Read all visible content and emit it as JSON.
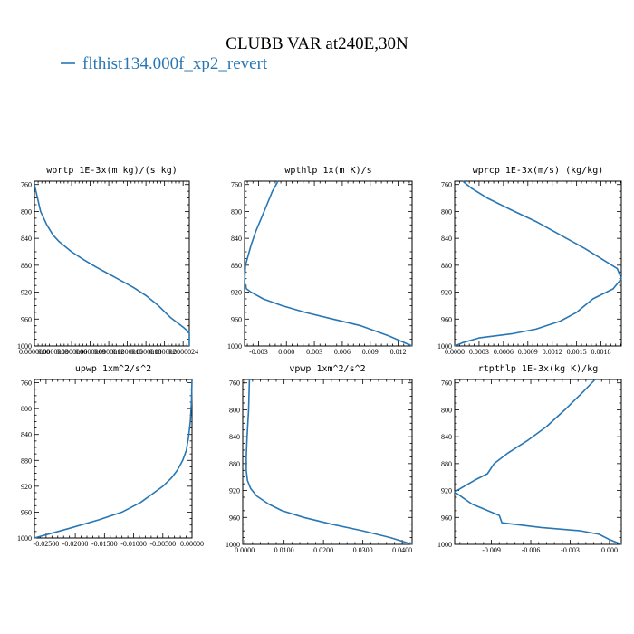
{
  "figure": {
    "title": "CLUBB VAR at240E,30N",
    "legend": [
      {
        "label": "flthist134.000f_xp2_revert",
        "color": "#2877b4"
      }
    ],
    "line_color": "#2877b4"
  },
  "chart_data": [
    {
      "type": "line",
      "title": "wprtp  1E-3x(m kg)/(s kg)",
      "xlim": [
        0.0,
        2.5e-06
      ],
      "xticks": [
        0.0,
        3e-07,
        6e-07,
        9e-07,
        1.2e-06,
        1.5e-06,
        1.8e-06,
        2.1e-06,
        2.4e-06
      ],
      "xtick_labels": [
        "0.0000000",
        "0.0000003",
        "0.0000006",
        "0.0000009",
        "0.0000012",
        "0.0000015",
        "0.0000018",
        "0.0000021",
        "0.0000024"
      ],
      "ylim": [
        1000,
        755
      ],
      "yticks": [
        760,
        800,
        840,
        880,
        920,
        960,
        1000
      ],
      "series": [
        {
          "x": [
            0.0,
            5e-08,
            1e-07,
            2e-07,
            3e-07,
            4e-07,
            6e-07,
            8e-07,
            1e-06,
            1.2e-06,
            1.4e-06,
            1.6e-06,
            1.8e-06,
            2e-06,
            2.2e-06,
            2.4e-06,
            2.5e-06,
            2.5e-06
          ],
          "y": [
            760,
            780,
            800,
            820,
            835,
            845,
            860,
            872,
            883,
            893,
            903,
            913,
            925,
            940,
            958,
            972,
            980,
            1000
          ]
        }
      ]
    },
    {
      "type": "line",
      "title": "wpthlp  1x(m K)/s",
      "xlim": [
        -0.0045,
        0.0135
      ],
      "xticks": [
        -0.003,
        0.0,
        0.003,
        0.006,
        0.009,
        0.012
      ],
      "xtick_labels": [
        "-0.003",
        "0.000",
        "0.003",
        "0.006",
        "0.009",
        "0.012"
      ],
      "ylim": [
        1000,
        755
      ],
      "yticks": [
        760,
        800,
        840,
        880,
        920,
        960,
        1000
      ],
      "series": [
        {
          "x": [
            -0.0009,
            -0.0015,
            -0.0021,
            -0.0027,
            -0.0033,
            -0.0038,
            -0.0044,
            -0.0045,
            -0.0043,
            -0.0038,
            -0.0025,
            -0.0005,
            0.002,
            0.005,
            0.008,
            0.011,
            0.0135
          ],
          "y": [
            755,
            770,
            790,
            810,
            830,
            850,
            880,
            905,
            915,
            920,
            930,
            940,
            950,
            960,
            970,
            985,
            1000
          ]
        }
      ]
    },
    {
      "type": "line",
      "title": "wprcp  1E-3x(m/s) (kg/kg)",
      "xlim": [
        0.0,
        0.00205
      ],
      "xticks": [
        0.0,
        0.0003,
        0.0006,
        0.0009,
        0.0012,
        0.0015,
        0.0018
      ],
      "xtick_labels": [
        "0.0000",
        "0.0003",
        "0.0006",
        "0.0009",
        "0.0012",
        "0.0015",
        "0.0018"
      ],
      "ylim": [
        1000,
        755
      ],
      "yticks": [
        760,
        800,
        840,
        880,
        920,
        960,
        1000
      ],
      "series": [
        {
          "x": [
            0.0001,
            0.0002,
            0.0004,
            0.0007,
            0.001,
            0.0013,
            0.0016,
            0.0018,
            0.002,
            0.00205,
            0.00195,
            0.0017,
            0.0015,
            0.0013,
            0.001,
            0.0007,
            0.0003,
            0.0001,
            0.0
          ],
          "y": [
            755,
            765,
            780,
            798,
            815,
            835,
            855,
            870,
            885,
            900,
            915,
            930,
            950,
            963,
            975,
            982,
            988,
            995,
            1000
          ]
        }
      ]
    },
    {
      "type": "line",
      "title": "upwp  1xm^2/s^2",
      "xlim": [
        -0.027,
        0.0
      ],
      "xticks": [
        -0.025,
        -0.02,
        -0.015,
        -0.01,
        -0.005,
        0.0
      ],
      "xtick_labels": [
        "-0.02500",
        "-0.02000",
        "-0.01500",
        "-0.01000",
        "-0.00500",
        "0.00000"
      ],
      "ylim": [
        1000,
        755
      ],
      "yticks": [
        760,
        800,
        840,
        880,
        920,
        960,
        1000
      ],
      "series": [
        {
          "x": [
            0.0,
            -0.0001,
            -0.0003,
            -0.0006,
            -0.001,
            -0.0016,
            -0.0025,
            -0.0035,
            -0.005,
            -0.0068,
            -0.0088,
            -0.012,
            -0.016,
            -0.021,
            -0.027
          ],
          "y": [
            755,
            790,
            820,
            845,
            865,
            880,
            895,
            907,
            920,
            932,
            945,
            960,
            972,
            985,
            1000
          ]
        }
      ]
    },
    {
      "type": "line",
      "title": "vpwp  1xm^2/s^2",
      "xlim": [
        -0.0005,
        0.0425
      ],
      "xticks": [
        0.0,
        0.01,
        0.02,
        0.03,
        0.04
      ],
      "xtick_labels": [
        "0.0000",
        "0.0100",
        "0.0200",
        "0.0300",
        "0.0400"
      ],
      "ylim": [
        1000,
        755
      ],
      "yticks": [
        760,
        800,
        840,
        880,
        920,
        960,
        1000
      ],
      "series": [
        {
          "x": [
            0.0012,
            0.001,
            0.0006,
            0.0004,
            0.0004,
            0.0007,
            0.0015,
            0.003,
            0.006,
            0.0095,
            0.015,
            0.022,
            0.03,
            0.037,
            0.0425
          ],
          "y": [
            755,
            800,
            840,
            870,
            890,
            905,
            917,
            928,
            940,
            950,
            960,
            970,
            980,
            990,
            1000
          ]
        }
      ]
    },
    {
      "type": "line",
      "title": "rtpthlp  1E-3x(kg K)/kg",
      "xlim": [
        -0.0118,
        0.0009
      ],
      "xticks": [
        -0.009,
        -0.006,
        -0.003,
        0.0
      ],
      "xtick_labels": [
        "-0.009",
        "-0.006",
        "-0.003",
        "0.000"
      ],
      "ylim": [
        1000,
        755
      ],
      "yticks": [
        760,
        800,
        840,
        880,
        920,
        960,
        1000
      ],
      "series": [
        {
          "x": [
            -0.0011,
            -0.0021,
            -0.0034,
            -0.0048,
            -0.0062,
            -0.0078,
            -0.0088,
            -0.0093,
            -0.0103,
            -0.0118,
            -0.0105,
            -0.0084,
            -0.0082,
            -0.0052,
            -0.0022,
            -0.0008,
            0.0,
            0.0009
          ],
          "y": [
            755,
            775,
            800,
            825,
            845,
            865,
            880,
            895,
            905,
            922,
            940,
            957,
            968,
            975,
            980,
            985,
            993,
            1000
          ]
        }
      ]
    }
  ]
}
